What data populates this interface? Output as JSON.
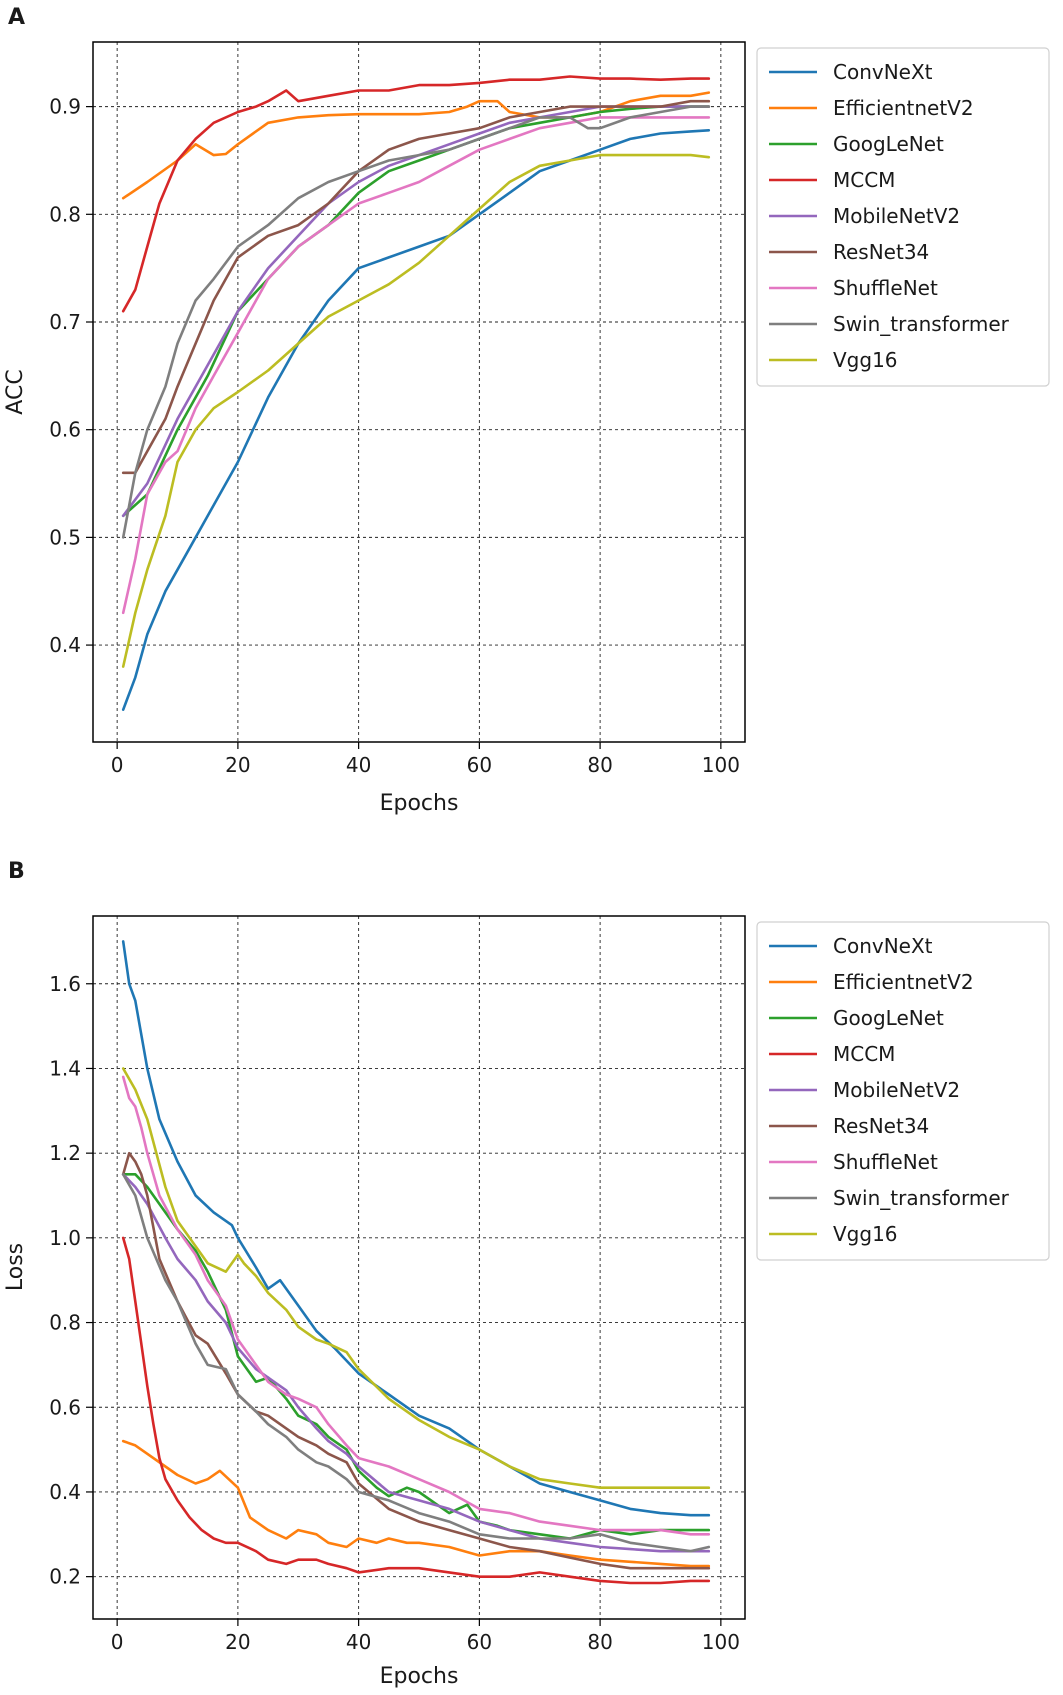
{
  "series_colors": {
    "ConvNeXt": "#1f77b4",
    "EfficientnetV2": "#ff7f0e",
    "GoogLeNet": "#2ca02c",
    "MCCM": "#d62728",
    "MobileNetV2": "#9467bd",
    "ResNet34": "#8c564b",
    "ShuffleNet": "#e377c2",
    "Swin_transformer": "#7f7f7f",
    "Vgg16": "#bcbd22"
  },
  "chart_data": [
    {
      "panel_label": "A",
      "type": "line",
      "xlabel": "Epochs",
      "ylabel": "ACC",
      "xlim": [
        -4,
        104
      ],
      "ylim": [
        0.31,
        0.96
      ],
      "xticks": [
        0,
        20,
        40,
        60,
        80,
        100
      ],
      "yticks": [
        0.4,
        0.5,
        0.6,
        0.7,
        0.8,
        0.9
      ],
      "grid": true,
      "legend": "outside-right-top",
      "series": [
        {
          "name": "ConvNeXt",
          "x": [
            1,
            3,
            5,
            8,
            12,
            16,
            20,
            25,
            30,
            35,
            40,
            45,
            50,
            55,
            60,
            65,
            70,
            75,
            80,
            85,
            90,
            95,
            98
          ],
          "y": [
            0.34,
            0.37,
            0.41,
            0.45,
            0.49,
            0.53,
            0.57,
            0.63,
            0.68,
            0.72,
            0.75,
            0.76,
            0.77,
            0.78,
            0.8,
            0.82,
            0.84,
            0.85,
            0.86,
            0.87,
            0.875,
            0.877,
            0.878
          ]
        },
        {
          "name": "EfficientnetV2",
          "x": [
            1,
            5,
            10,
            13,
            16,
            18,
            20,
            25,
            30,
            35,
            40,
            45,
            50,
            55,
            58,
            60,
            63,
            65,
            70,
            75,
            80,
            85,
            90,
            95,
            98
          ],
          "y": [
            0.815,
            0.83,
            0.85,
            0.865,
            0.855,
            0.856,
            0.865,
            0.885,
            0.89,
            0.892,
            0.893,
            0.893,
            0.893,
            0.895,
            0.9,
            0.905,
            0.905,
            0.895,
            0.89,
            0.89,
            0.895,
            0.905,
            0.91,
            0.91,
            0.913
          ]
        },
        {
          "name": "GoogLeNet",
          "x": [
            1,
            5,
            10,
            15,
            20,
            25,
            30,
            35,
            40,
            45,
            50,
            55,
            60,
            65,
            70,
            75,
            80,
            85,
            90,
            95,
            98
          ],
          "y": [
            0.52,
            0.54,
            0.6,
            0.65,
            0.71,
            0.74,
            0.77,
            0.79,
            0.82,
            0.84,
            0.85,
            0.86,
            0.87,
            0.88,
            0.885,
            0.89,
            0.895,
            0.898,
            0.9,
            0.9,
            0.9
          ]
        },
        {
          "name": "MCCM",
          "x": [
            1,
            3,
            5,
            7,
            10,
            13,
            16,
            20,
            23,
            25,
            28,
            30,
            35,
            40,
            45,
            50,
            55,
            60,
            65,
            70,
            75,
            80,
            85,
            90,
            95,
            98
          ],
          "y": [
            0.71,
            0.73,
            0.77,
            0.81,
            0.85,
            0.87,
            0.885,
            0.895,
            0.9,
            0.905,
            0.915,
            0.905,
            0.91,
            0.915,
            0.915,
            0.92,
            0.92,
            0.922,
            0.925,
            0.925,
            0.928,
            0.926,
            0.926,
            0.925,
            0.926,
            0.926
          ]
        },
        {
          "name": "MobileNetV2",
          "x": [
            1,
            5,
            10,
            15,
            20,
            25,
            30,
            35,
            40,
            45,
            50,
            55,
            60,
            65,
            70,
            75,
            80,
            85,
            90,
            95,
            98
          ],
          "y": [
            0.52,
            0.55,
            0.61,
            0.66,
            0.71,
            0.75,
            0.78,
            0.81,
            0.83,
            0.845,
            0.855,
            0.865,
            0.875,
            0.885,
            0.89,
            0.895,
            0.9,
            0.9,
            0.9,
            0.9,
            0.9
          ]
        },
        {
          "name": "ResNet34",
          "x": [
            1,
            3,
            5,
            8,
            10,
            13,
            16,
            20,
            25,
            30,
            35,
            40,
            45,
            50,
            55,
            60,
            65,
            70,
            75,
            80,
            85,
            90,
            95,
            98
          ],
          "y": [
            0.56,
            0.56,
            0.58,
            0.61,
            0.64,
            0.68,
            0.72,
            0.76,
            0.78,
            0.79,
            0.81,
            0.84,
            0.86,
            0.87,
            0.875,
            0.88,
            0.89,
            0.895,
            0.9,
            0.9,
            0.9,
            0.9,
            0.905,
            0.905
          ]
        },
        {
          "name": "ShuffleNet",
          "x": [
            1,
            3,
            5,
            8,
            10,
            13,
            16,
            20,
            25,
            30,
            35,
            40,
            45,
            50,
            55,
            60,
            65,
            70,
            75,
            80,
            85,
            90,
            95,
            98
          ],
          "y": [
            0.43,
            0.48,
            0.54,
            0.57,
            0.58,
            0.62,
            0.65,
            0.69,
            0.74,
            0.77,
            0.79,
            0.81,
            0.82,
            0.83,
            0.845,
            0.86,
            0.87,
            0.88,
            0.885,
            0.89,
            0.89,
            0.89,
            0.89,
            0.89
          ]
        },
        {
          "name": "Swin_transformer",
          "x": [
            1,
            3,
            5,
            8,
            10,
            13,
            16,
            20,
            25,
            30,
            35,
            40,
            45,
            50,
            55,
            60,
            65,
            70,
            75,
            78,
            80,
            85,
            90,
            95,
            98
          ],
          "y": [
            0.5,
            0.56,
            0.6,
            0.64,
            0.68,
            0.72,
            0.74,
            0.77,
            0.79,
            0.815,
            0.83,
            0.84,
            0.85,
            0.855,
            0.86,
            0.87,
            0.88,
            0.89,
            0.89,
            0.88,
            0.88,
            0.89,
            0.895,
            0.9,
            0.9
          ]
        },
        {
          "name": "Vgg16",
          "x": [
            1,
            3,
            5,
            8,
            10,
            13,
            16,
            20,
            25,
            30,
            35,
            40,
            45,
            50,
            55,
            60,
            65,
            70,
            75,
            80,
            85,
            90,
            95,
            98
          ],
          "y": [
            0.38,
            0.43,
            0.47,
            0.52,
            0.57,
            0.6,
            0.62,
            0.635,
            0.655,
            0.68,
            0.705,
            0.72,
            0.735,
            0.755,
            0.78,
            0.805,
            0.83,
            0.845,
            0.85,
            0.855,
            0.855,
            0.855,
            0.855,
            0.853
          ]
        }
      ]
    },
    {
      "panel_label": "B",
      "type": "line",
      "xlabel": "Epochs",
      "ylabel": "Loss",
      "xlim": [
        -4,
        104
      ],
      "ylim": [
        0.1,
        1.76
      ],
      "xticks": [
        0,
        20,
        40,
        60,
        80,
        100
      ],
      "yticks": [
        0.2,
        0.4,
        0.6,
        0.8,
        1.0,
        1.2,
        1.4,
        1.6
      ],
      "grid": true,
      "legend": "outside-right-top",
      "series": [
        {
          "name": "ConvNeXt",
          "x": [
            1,
            2,
            3,
            4,
            5,
            7,
            10,
            13,
            16,
            19,
            20,
            23,
            25,
            27,
            30,
            33,
            36,
            40,
            45,
            50,
            55,
            60,
            65,
            70,
            75,
            80,
            85,
            90,
            95,
            98
          ],
          "y": [
            1.7,
            1.6,
            1.56,
            1.48,
            1.4,
            1.28,
            1.18,
            1.1,
            1.06,
            1.03,
            1.0,
            0.93,
            0.88,
            0.9,
            0.84,
            0.78,
            0.74,
            0.68,
            0.63,
            0.58,
            0.55,
            0.5,
            0.46,
            0.42,
            0.4,
            0.38,
            0.36,
            0.35,
            0.345,
            0.345
          ]
        },
        {
          "name": "EfficientnetV2",
          "x": [
            1,
            3,
            5,
            8,
            10,
            13,
            15,
            17,
            20,
            22,
            25,
            28,
            30,
            33,
            35,
            38,
            40,
            43,
            45,
            48,
            50,
            55,
            60,
            65,
            70,
            75,
            80,
            85,
            90,
            95,
            98
          ],
          "y": [
            0.52,
            0.51,
            0.49,
            0.46,
            0.44,
            0.42,
            0.43,
            0.45,
            0.41,
            0.34,
            0.31,
            0.29,
            0.31,
            0.3,
            0.28,
            0.27,
            0.29,
            0.28,
            0.29,
            0.28,
            0.28,
            0.27,
            0.25,
            0.26,
            0.26,
            0.25,
            0.24,
            0.235,
            0.23,
            0.225,
            0.225
          ]
        },
        {
          "name": "GoogLeNet",
          "x": [
            1,
            3,
            5,
            8,
            10,
            13,
            15,
            18,
            20,
            23,
            25,
            28,
            30,
            33,
            35,
            38,
            40,
            43,
            45,
            48,
            50,
            53,
            55,
            58,
            60,
            63,
            65,
            70,
            75,
            80,
            85,
            90,
            95,
            98
          ],
          "y": [
            1.15,
            1.15,
            1.12,
            1.06,
            1.02,
            0.97,
            0.92,
            0.83,
            0.72,
            0.66,
            0.67,
            0.62,
            0.58,
            0.56,
            0.53,
            0.5,
            0.45,
            0.41,
            0.39,
            0.41,
            0.4,
            0.37,
            0.35,
            0.37,
            0.33,
            0.32,
            0.31,
            0.3,
            0.29,
            0.31,
            0.3,
            0.31,
            0.31,
            0.31
          ]
        },
        {
          "name": "MCCM",
          "x": [
            1,
            2,
            3,
            4,
            5,
            6,
            7,
            8,
            10,
            12,
            14,
            16,
            18,
            20,
            23,
            25,
            28,
            30,
            33,
            35,
            38,
            40,
            45,
            50,
            55,
            60,
            65,
            70,
            75,
            80,
            85,
            90,
            95,
            98
          ],
          "y": [
            1.0,
            0.95,
            0.85,
            0.75,
            0.65,
            0.56,
            0.48,
            0.43,
            0.38,
            0.34,
            0.31,
            0.29,
            0.28,
            0.28,
            0.26,
            0.24,
            0.23,
            0.24,
            0.24,
            0.23,
            0.22,
            0.21,
            0.22,
            0.22,
            0.21,
            0.2,
            0.2,
            0.21,
            0.2,
            0.19,
            0.185,
            0.185,
            0.19,
            0.19
          ]
        },
        {
          "name": "MobileNetV2",
          "x": [
            1,
            3,
            5,
            8,
            10,
            13,
            15,
            18,
            20,
            23,
            25,
            28,
            30,
            33,
            35,
            38,
            40,
            45,
            50,
            55,
            60,
            65,
            70,
            75,
            80,
            85,
            90,
            95,
            98
          ],
          "y": [
            1.15,
            1.12,
            1.08,
            1.0,
            0.95,
            0.9,
            0.85,
            0.8,
            0.74,
            0.69,
            0.67,
            0.64,
            0.6,
            0.55,
            0.52,
            0.49,
            0.46,
            0.4,
            0.38,
            0.36,
            0.33,
            0.31,
            0.29,
            0.28,
            0.27,
            0.265,
            0.26,
            0.26,
            0.26
          ]
        },
        {
          "name": "ResNet34",
          "x": [
            1,
            2,
            3,
            4,
            5,
            7,
            10,
            13,
            15,
            18,
            20,
            23,
            25,
            28,
            30,
            33,
            35,
            38,
            40,
            45,
            50,
            55,
            60,
            65,
            70,
            75,
            80,
            85,
            90,
            95,
            98
          ],
          "y": [
            1.15,
            1.2,
            1.18,
            1.15,
            1.1,
            0.95,
            0.85,
            0.77,
            0.75,
            0.68,
            0.63,
            0.59,
            0.58,
            0.55,
            0.53,
            0.51,
            0.49,
            0.47,
            0.42,
            0.36,
            0.33,
            0.31,
            0.29,
            0.27,
            0.26,
            0.245,
            0.23,
            0.22,
            0.22,
            0.22,
            0.22
          ]
        },
        {
          "name": "ShuffleNet",
          "x": [
            1,
            2,
            3,
            4,
            5,
            7,
            10,
            13,
            15,
            18,
            20,
            23,
            25,
            28,
            30,
            33,
            35,
            38,
            40,
            45,
            50,
            55,
            60,
            65,
            70,
            75,
            80,
            85,
            90,
            95,
            98
          ],
          "y": [
            1.38,
            1.33,
            1.31,
            1.26,
            1.2,
            1.1,
            1.02,
            0.96,
            0.9,
            0.84,
            0.76,
            0.7,
            0.66,
            0.63,
            0.62,
            0.6,
            0.56,
            0.51,
            0.48,
            0.46,
            0.43,
            0.4,
            0.36,
            0.35,
            0.33,
            0.32,
            0.31,
            0.31,
            0.31,
            0.3,
            0.3
          ]
        },
        {
          "name": "Swin_transformer",
          "x": [
            1,
            3,
            5,
            8,
            10,
            13,
            15,
            18,
            20,
            23,
            25,
            28,
            30,
            33,
            35,
            38,
            40,
            45,
            50,
            55,
            60,
            65,
            70,
            75,
            80,
            85,
            90,
            95,
            98
          ],
          "y": [
            1.15,
            1.1,
            1.0,
            0.9,
            0.85,
            0.75,
            0.7,
            0.69,
            0.63,
            0.59,
            0.56,
            0.53,
            0.5,
            0.47,
            0.46,
            0.43,
            0.4,
            0.38,
            0.35,
            0.33,
            0.3,
            0.29,
            0.29,
            0.29,
            0.3,
            0.28,
            0.27,
            0.26,
            0.27
          ]
        },
        {
          "name": "Vgg16",
          "x": [
            1,
            3,
            5,
            8,
            10,
            13,
            15,
            18,
            20,
            21,
            23,
            25,
            28,
            30,
            33,
            35,
            38,
            40,
            45,
            50,
            55,
            60,
            65,
            70,
            75,
            80,
            85,
            90,
            95,
            98
          ],
          "y": [
            1.4,
            1.35,
            1.28,
            1.12,
            1.04,
            0.98,
            0.94,
            0.92,
            0.96,
            0.94,
            0.91,
            0.87,
            0.83,
            0.79,
            0.76,
            0.75,
            0.73,
            0.69,
            0.62,
            0.57,
            0.53,
            0.5,
            0.46,
            0.43,
            0.42,
            0.41,
            0.41,
            0.41,
            0.41,
            0.41
          ]
        }
      ]
    }
  ]
}
